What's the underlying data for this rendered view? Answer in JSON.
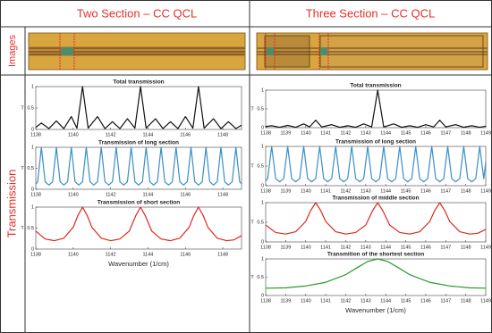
{
  "table": {
    "headers": [
      "Two Section – CC QCL",
      "Three Section – CC QCL"
    ],
    "row_labels": [
      "Images",
      "Transmission"
    ]
  },
  "chart_data": [
    {
      "type": "line",
      "title": "Total transmission",
      "ylabel": "T",
      "color": "#111111",
      "xlim": [
        1138,
        1149
      ],
      "xticks": [
        1138,
        1140,
        1142,
        1144,
        1146,
        1148
      ],
      "ylim": [
        0,
        1
      ],
      "yticks": [
        0,
        0.5,
        1
      ],
      "x": [
        1138,
        1138.3,
        1138.7,
        1139.1,
        1139.5,
        1139.9,
        1140.2,
        1140.5,
        1140.8,
        1141.3,
        1141.7,
        1142.1,
        1142.5,
        1142.9,
        1143.3,
        1143.6,
        1143.9,
        1144.4,
        1144.8,
        1145.2,
        1145.6,
        1146.0,
        1146.4,
        1146.7,
        1147.0,
        1147.5,
        1147.9,
        1148.3,
        1148.7,
        1149
      ],
      "values": [
        0.05,
        0.15,
        0.02,
        0.2,
        0.02,
        0.3,
        0.03,
        1,
        0.03,
        0.3,
        0.02,
        0.18,
        0.02,
        0.25,
        0.03,
        1,
        0.03,
        0.25,
        0.02,
        0.18,
        0.02,
        0.3,
        0.03,
        1,
        0.03,
        0.25,
        0.02,
        0.18,
        0.02,
        0.1
      ]
    },
    {
      "type": "line",
      "title": "Transmission of long section",
      "ylabel": "T",
      "color": "#3a8fc4",
      "xlim": [
        1138,
        1149
      ],
      "xticks": [
        1138,
        1140,
        1142,
        1144,
        1146,
        1148
      ],
      "ylim": [
        0,
        1
      ],
      "yticks": [
        0,
        0.5,
        1
      ],
      "x": [
        1138,
        1138.1,
        1138.3,
        1138.5,
        1138.7,
        1138.9,
        1139.1,
        1139.3,
        1139.5,
        1139.7,
        1139.9,
        1140.1,
        1140.3,
        1140.5,
        1140.7,
        1140.9,
        1141.1,
        1141.3,
        1141.5,
        1141.7,
        1141.9,
        1142.1,
        1142.3,
        1142.5,
        1142.7,
        1142.9,
        1143.1,
        1143.3,
        1143.5,
        1143.7,
        1143.9,
        1144.1,
        1144.3,
        1144.5,
        1144.7,
        1144.9,
        1145.1,
        1145.3,
        1145.5,
        1145.7,
        1145.9,
        1146.1,
        1146.3,
        1146.5,
        1146.7,
        1146.9,
        1147.1,
        1147.3,
        1147.5,
        1147.7,
        1147.9,
        1148.1,
        1148.3,
        1148.5,
        1148.7,
        1148.9,
        1149
      ],
      "values": [
        0.12,
        0.18,
        1,
        0.18,
        0.1,
        0.18,
        1,
        0.18,
        0.1,
        0.18,
        1,
        0.18,
        0.1,
        0.18,
        1,
        0.18,
        0.1,
        0.18,
        1,
        0.18,
        0.1,
        0.18,
        1,
        0.18,
        0.1,
        0.18,
        1,
        0.18,
        0.1,
        0.18,
        1,
        0.18,
        0.1,
        0.18,
        1,
        0.18,
        0.1,
        0.18,
        1,
        0.18,
        0.1,
        0.18,
        1,
        0.18,
        0.1,
        0.18,
        1,
        0.18,
        0.1,
        0.18,
        1,
        0.18,
        0.1,
        0.18,
        1,
        0.18,
        0.13
      ]
    },
    {
      "type": "line",
      "title": "Transmission of short section",
      "ylabel": "T",
      "xlabel": "Wavenumber (1/cm)",
      "color": "#e0271e",
      "xlim": [
        1138,
        1149
      ],
      "xticks": [
        1138,
        1140,
        1142,
        1144,
        1146,
        1148
      ],
      "ylim": [
        0,
        1
      ],
      "yticks": [
        0,
        0.5,
        1
      ],
      "x": [
        1138,
        1138.5,
        1139,
        1139.5,
        1140,
        1140.25,
        1140.5,
        1140.75,
        1141,
        1141.5,
        1142,
        1142.5,
        1143,
        1143.35,
        1143.6,
        1143.85,
        1144.2,
        1144.7,
        1145.2,
        1145.7,
        1146.2,
        1146.45,
        1146.7,
        1146.95,
        1147.2,
        1147.7,
        1148.2,
        1148.6,
        1149
      ],
      "values": [
        0.43,
        0.24,
        0.2,
        0.26,
        0.52,
        0.8,
        1,
        0.8,
        0.52,
        0.26,
        0.2,
        0.24,
        0.43,
        0.8,
        1,
        0.8,
        0.43,
        0.24,
        0.2,
        0.26,
        0.52,
        0.8,
        1,
        0.8,
        0.52,
        0.26,
        0.2,
        0.22,
        0.32
      ]
    },
    {
      "type": "line",
      "title": "Total transmission",
      "ylabel": "T",
      "color": "#111111",
      "xlim": [
        1138,
        1149
      ],
      "xticks": [
        1138,
        1139,
        1140,
        1141,
        1142,
        1143,
        1144,
        1145,
        1146,
        1147,
        1148,
        1149
      ],
      "ylim": [
        0,
        1
      ],
      "yticks": [
        0,
        0.5,
        1
      ],
      "x": [
        1138,
        1138.3,
        1138.7,
        1139.1,
        1139.5,
        1139.9,
        1140.2,
        1140.5,
        1140.8,
        1141.3,
        1141.7,
        1142.1,
        1142.5,
        1142.9,
        1143.3,
        1143.6,
        1143.9,
        1144.4,
        1144.8,
        1145.2,
        1145.6,
        1146.0,
        1146.4,
        1146.7,
        1147.0,
        1147.5,
        1147.9,
        1148.3,
        1148.7,
        1149
      ],
      "values": [
        0.03,
        0.05,
        0.01,
        0.06,
        0.01,
        0.1,
        0.02,
        0.2,
        0.02,
        0.08,
        0.01,
        0.05,
        0.01,
        0.1,
        0.02,
        1,
        0.02,
        0.1,
        0.01,
        0.05,
        0.01,
        0.08,
        0.02,
        0.2,
        0.02,
        0.08,
        0.01,
        0.05,
        0.01,
        0.04
      ]
    },
    {
      "type": "line",
      "title": "Transmission of long section",
      "ylabel": "T",
      "color": "#3a8fc4",
      "xlim": [
        1138,
        1149
      ],
      "xticks": [
        1138,
        1139,
        1140,
        1141,
        1142,
        1143,
        1144,
        1145,
        1146,
        1147,
        1148,
        1149
      ],
      "ylim": [
        0,
        1
      ],
      "yticks": [
        0,
        0.5,
        1
      ],
      "x": [
        1138,
        1138.1,
        1138.3,
        1138.5,
        1138.7,
        1138.9,
        1139.1,
        1139.3,
        1139.5,
        1139.7,
        1139.9,
        1140.1,
        1140.3,
        1140.5,
        1140.7,
        1140.9,
        1141.1,
        1141.3,
        1141.5,
        1141.7,
        1141.9,
        1142.1,
        1142.3,
        1142.5,
        1142.7,
        1142.9,
        1143.1,
        1143.3,
        1143.5,
        1143.7,
        1143.9,
        1144.1,
        1144.3,
        1144.5,
        1144.7,
        1144.9,
        1145.1,
        1145.3,
        1145.5,
        1145.7,
        1145.9,
        1146.1,
        1146.3,
        1146.5,
        1146.7,
        1146.9,
        1147.1,
        1147.3,
        1147.5,
        1147.7,
        1147.9,
        1148.1,
        1148.3,
        1148.5,
        1148.7,
        1148.9,
        1149
      ],
      "values": [
        0.12,
        0.18,
        1,
        0.18,
        0.1,
        0.18,
        1,
        0.18,
        0.1,
        0.18,
        1,
        0.18,
        0.1,
        0.18,
        1,
        0.18,
        0.1,
        0.18,
        1,
        0.18,
        0.1,
        0.18,
        1,
        0.18,
        0.1,
        0.18,
        1,
        0.18,
        0.1,
        0.18,
        1,
        0.18,
        0.1,
        0.18,
        1,
        0.18,
        0.1,
        0.18,
        1,
        0.18,
        0.1,
        0.18,
        1,
        0.18,
        0.1,
        0.18,
        1,
        0.18,
        0.1,
        0.18,
        1,
        0.18,
        0.1,
        0.18,
        1,
        0.18,
        0.6
      ]
    },
    {
      "type": "line",
      "title": "Transmission of middle section",
      "ylabel": "T",
      "color": "#e0271e",
      "xlim": [
        1138,
        1149
      ],
      "xticks": [
        1138,
        1139,
        1140,
        1141,
        1142,
        1143,
        1144,
        1145,
        1146,
        1147,
        1148,
        1149
      ],
      "ylim": [
        0,
        1
      ],
      "yticks": [
        0,
        0.5,
        1
      ],
      "x": [
        1138,
        1138.5,
        1139,
        1139.5,
        1140,
        1140.25,
        1140.5,
        1140.75,
        1141,
        1141.5,
        1142,
        1142.5,
        1143,
        1143.35,
        1143.6,
        1143.85,
        1144.2,
        1144.7,
        1145.2,
        1145.7,
        1146.2,
        1146.45,
        1146.7,
        1146.95,
        1147.2,
        1147.7,
        1148.2,
        1148.6,
        1149
      ],
      "values": [
        0.43,
        0.24,
        0.2,
        0.26,
        0.52,
        0.8,
        1,
        0.8,
        0.52,
        0.26,
        0.2,
        0.24,
        0.43,
        0.8,
        1,
        0.8,
        0.43,
        0.24,
        0.2,
        0.26,
        0.52,
        0.8,
        1,
        0.8,
        0.52,
        0.26,
        0.2,
        0.22,
        0.32
      ]
    },
    {
      "type": "line",
      "title": "Transmition of the shortest section",
      "ylabel": "T",
      "xlabel": "Wavenumber (1/cm)",
      "color": "#2a9a2a",
      "xlim": [
        1138,
        1149
      ],
      "xticks": [
        1138,
        1139,
        1140,
        1141,
        1142,
        1143,
        1144,
        1145,
        1146,
        1147,
        1148,
        1149
      ],
      "ylim": [
        0,
        1
      ],
      "yticks": [
        0,
        0.5,
        1
      ],
      "x": [
        1138,
        1139,
        1140,
        1141,
        1142,
        1142.6,
        1143.1,
        1143.6,
        1144.1,
        1144.6,
        1145.2,
        1146.2,
        1147.2,
        1148.2,
        1149
      ],
      "values": [
        0.2,
        0.21,
        0.26,
        0.36,
        0.57,
        0.77,
        0.93,
        1,
        0.93,
        0.77,
        0.57,
        0.36,
        0.26,
        0.21,
        0.2
      ]
    }
  ]
}
